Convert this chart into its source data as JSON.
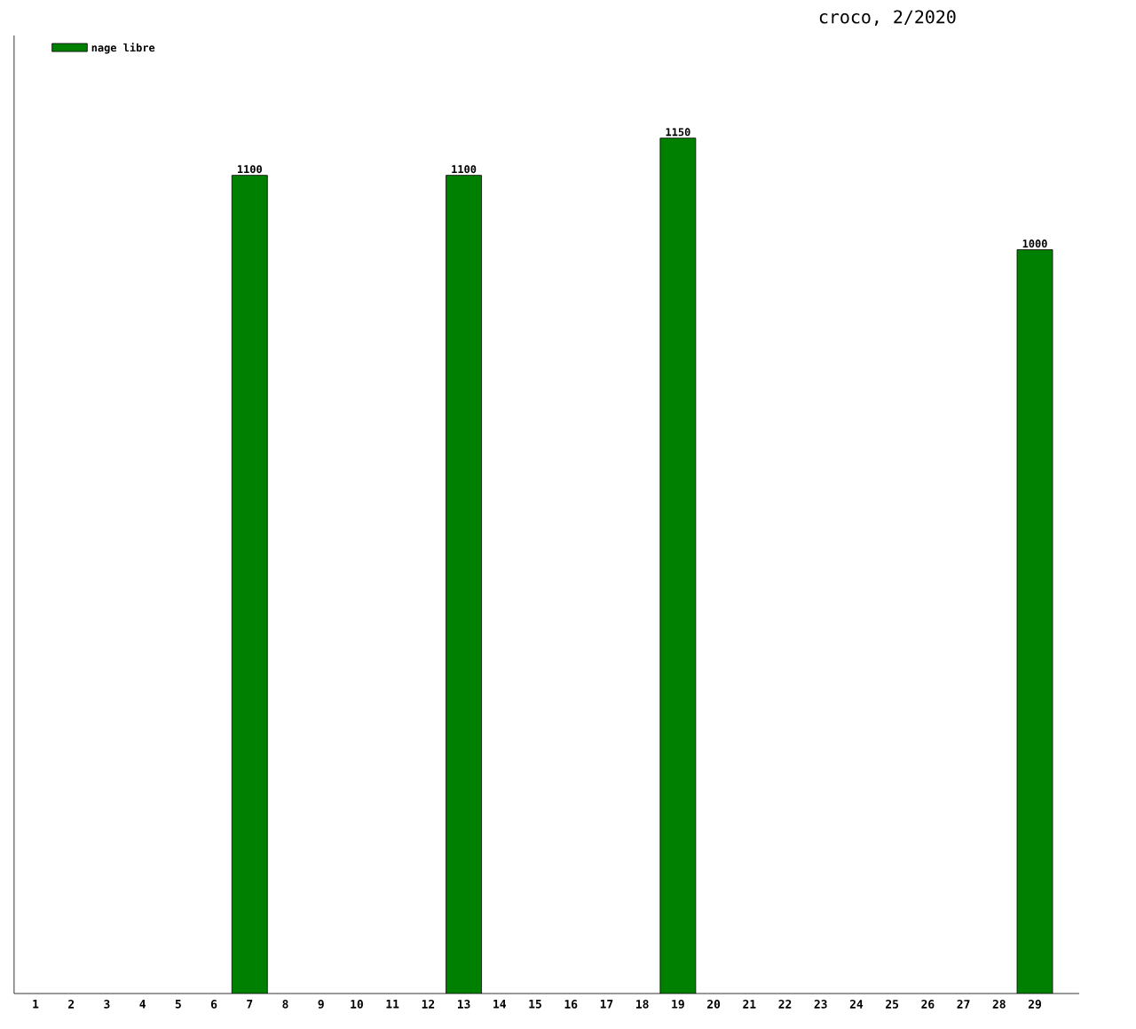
{
  "chart_data": {
    "type": "bar",
    "title": "croco, 2/2020",
    "categories": [
      "1",
      "2",
      "3",
      "4",
      "5",
      "6",
      "7",
      "8",
      "9",
      "10",
      "11",
      "12",
      "13",
      "14",
      "15",
      "16",
      "17",
      "18",
      "19",
      "20",
      "21",
      "22",
      "23",
      "24",
      "25",
      "26",
      "27",
      "28",
      "29"
    ],
    "series": [
      {
        "name": "nage libre",
        "color": "#008000",
        "values": [
          null,
          null,
          null,
          null,
          null,
          null,
          1100,
          null,
          null,
          null,
          null,
          null,
          1100,
          null,
          null,
          null,
          null,
          null,
          1150,
          null,
          null,
          null,
          null,
          null,
          null,
          null,
          null,
          null,
          1000
        ],
        "value_labels": [
          null,
          null,
          null,
          null,
          null,
          null,
          "1100",
          null,
          null,
          null,
          null,
          null,
          "1100",
          null,
          null,
          null,
          null,
          null,
          "1150",
          null,
          null,
          null,
          null,
          null,
          null,
          null,
          null,
          null,
          "1000"
        ]
      }
    ],
    "legend": "top left",
    "grid": false
  }
}
